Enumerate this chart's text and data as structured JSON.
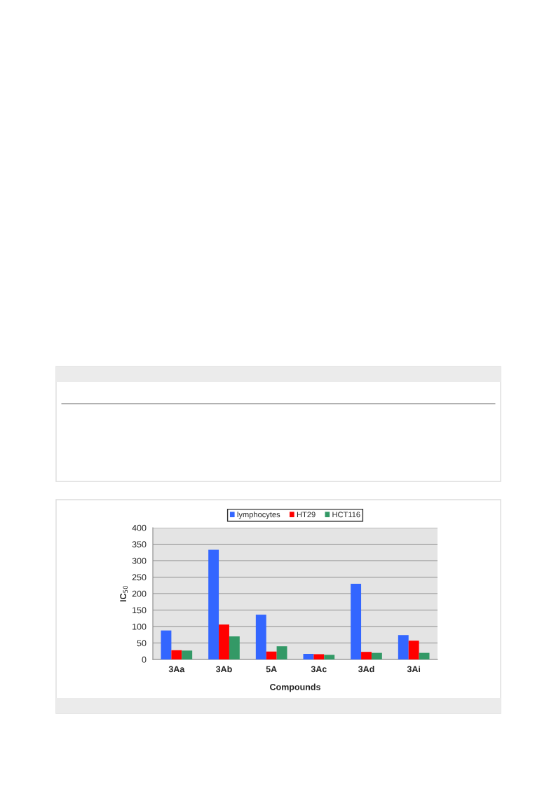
{
  "chart_data": {
    "type": "bar",
    "xlabel": "Compounds",
    "ylabel": "IC$_{50}$",
    "categories": [
      "3Aa",
      "3Ab",
      "5A",
      "3Ac",
      "3Ad",
      "3Ai"
    ],
    "series": [
      {
        "name": "lymphocytes",
        "color": "#3366ff",
        "values": [
          88,
          333,
          136,
          17,
          230,
          74
        ]
      },
      {
        "name": "HT29",
        "color": "#ff0000",
        "values": [
          28,
          106,
          24,
          16,
          23,
          57
        ]
      },
      {
        "name": "HCT116",
        "color": "#339966",
        "values": [
          27,
          70,
          40,
          14,
          20,
          20
        ]
      }
    ],
    "ylim": [
      0,
      400
    ],
    "yticks": [
      0,
      50,
      100,
      150,
      200,
      250,
      300,
      350,
      400
    ],
    "grid": "y",
    "legend": "top"
  }
}
